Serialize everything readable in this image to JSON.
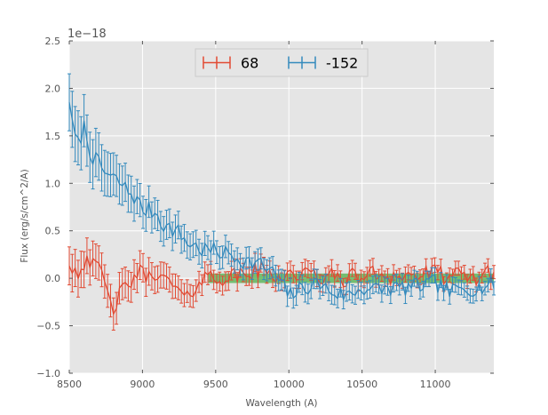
{
  "chart_data": {
    "type": "line",
    "title": "",
    "xlabel": "Wavelength (A)",
    "ylabel": "Flux (erg/s/cm^2/A)",
    "offset_text": "1e−18",
    "xlim": [
      8500,
      11400
    ],
    "ylim": [
      -1.0,
      2.5
    ],
    "xticks": [
      8500,
      9000,
      9500,
      10000,
      10500,
      11000
    ],
    "xtick_labels": [
      "8500",
      "9000",
      "9500",
      "10000",
      "10500",
      "11000"
    ],
    "yticks": [
      -1.0,
      -0.5,
      0.0,
      0.5,
      1.0,
      1.5,
      2.0,
      2.5
    ],
    "ytick_labels": [
      "−1.0",
      "−0.5",
      "0.0",
      "0.5",
      "1.0",
      "1.5",
      "2.0",
      "2.5"
    ],
    "grid": true,
    "legend_position": "top-center",
    "band": {
      "x_range": [
        9450,
        11400
      ],
      "y_range": [
        -0.05,
        0.05
      ],
      "color": "#4daf4a"
    },
    "series": [
      {
        "name": "68",
        "color": "#e24a33",
        "knots_x": [
          8500,
          8560,
          8620,
          8680,
          8720,
          8760,
          8800,
          8860,
          8900,
          8950,
          9000,
          9050,
          9100,
          9150,
          9200,
          9250,
          9300,
          9350,
          9400,
          9450,
          9500,
          9550,
          9600,
          9700,
          9800,
          9900,
          10000,
          10200,
          10400,
          10600,
          10800,
          11000,
          11200,
          11400
        ],
        "knots_y": [
          0.18,
          0.05,
          0.25,
          0.08,
          0.1,
          -0.2,
          -0.3,
          -0.15,
          -0.1,
          0.05,
          0.05,
          0.0,
          0.1,
          -0.05,
          -0.05,
          -0.15,
          -0.25,
          -0.1,
          0.0,
          0.02,
          0.0,
          0.02,
          0.0,
          0.05,
          0.08,
          0.03,
          0.05,
          0.02,
          0.0,
          0.05,
          0.02,
          0.05,
          0.0,
          0.05
        ],
        "noise": 0.1,
        "errors": [
          [
            8500,
            0.2
          ],
          [
            9000,
            0.15
          ],
          [
            9500,
            0.1
          ],
          [
            11400,
            0.07
          ]
        ]
      },
      {
        "name": "-152",
        "color": "#348abd",
        "knots_x": [
          8500,
          8520,
          8560,
          8600,
          8650,
          8700,
          8750,
          8800,
          8850,
          8900,
          8950,
          9000,
          9050,
          9100,
          9150,
          9200,
          9250,
          9300,
          9350,
          9400,
          9450,
          9500,
          9600,
          9700,
          9800,
          9900,
          10000,
          10100,
          10200,
          10300,
          10400,
          10500,
          10600,
          10700,
          10800,
          10900,
          11000,
          11100,
          11200,
          11300,
          11400
        ],
        "knots_y": [
          1.9,
          1.6,
          1.4,
          1.6,
          1.3,
          1.2,
          1.1,
          1.05,
          1.0,
          0.92,
          0.85,
          0.72,
          0.72,
          0.68,
          0.55,
          0.52,
          0.48,
          0.38,
          0.35,
          0.3,
          0.3,
          0.28,
          0.25,
          0.18,
          0.15,
          0.05,
          -0.18,
          -0.1,
          -0.05,
          -0.15,
          -0.18,
          -0.1,
          -0.12,
          -0.1,
          -0.1,
          -0.08,
          -0.05,
          -0.15,
          -0.1,
          -0.1,
          -0.05
        ],
        "noise": 0.09,
        "errors": [
          [
            8500,
            0.3
          ],
          [
            8700,
            0.25
          ],
          [
            9000,
            0.17
          ],
          [
            9500,
            0.12
          ],
          [
            11400,
            0.07
          ]
        ]
      }
    ]
  }
}
